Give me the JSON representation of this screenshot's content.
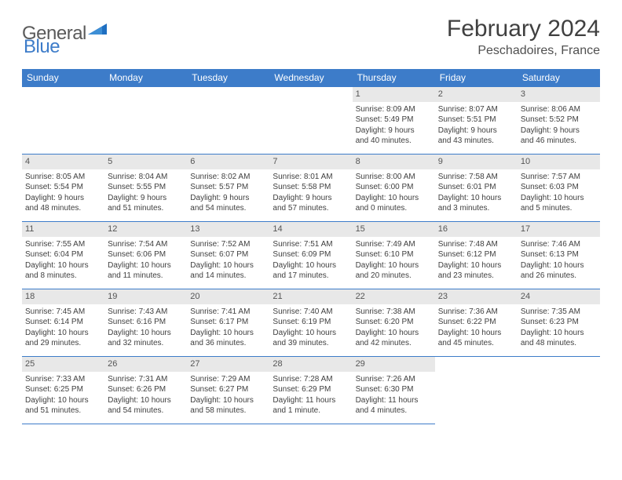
{
  "logo": {
    "part1": "General",
    "part2": "Blue"
  },
  "title": "February 2024",
  "location": "Peschadoires, France",
  "colors": {
    "header_bg": "#3d7cc9",
    "header_text": "#ffffff",
    "daynum_bg": "#e8e8e8",
    "border": "#3d7cc9",
    "text": "#404040",
    "logo_gray": "#5a5a5a",
    "logo_blue": "#3d7cc9",
    "page_bg": "#ffffff"
  },
  "day_headers": [
    "Sunday",
    "Monday",
    "Tuesday",
    "Wednesday",
    "Thursday",
    "Friday",
    "Saturday"
  ],
  "weeks": [
    [
      null,
      null,
      null,
      null,
      {
        "n": "1",
        "sr": "Sunrise: 8:09 AM",
        "ss": "Sunset: 5:49 PM",
        "d1": "Daylight: 9 hours",
        "d2": "and 40 minutes."
      },
      {
        "n": "2",
        "sr": "Sunrise: 8:07 AM",
        "ss": "Sunset: 5:51 PM",
        "d1": "Daylight: 9 hours",
        "d2": "and 43 minutes."
      },
      {
        "n": "3",
        "sr": "Sunrise: 8:06 AM",
        "ss": "Sunset: 5:52 PM",
        "d1": "Daylight: 9 hours",
        "d2": "and 46 minutes."
      }
    ],
    [
      {
        "n": "4",
        "sr": "Sunrise: 8:05 AM",
        "ss": "Sunset: 5:54 PM",
        "d1": "Daylight: 9 hours",
        "d2": "and 48 minutes."
      },
      {
        "n": "5",
        "sr": "Sunrise: 8:04 AM",
        "ss": "Sunset: 5:55 PM",
        "d1": "Daylight: 9 hours",
        "d2": "and 51 minutes."
      },
      {
        "n": "6",
        "sr": "Sunrise: 8:02 AM",
        "ss": "Sunset: 5:57 PM",
        "d1": "Daylight: 9 hours",
        "d2": "and 54 minutes."
      },
      {
        "n": "7",
        "sr": "Sunrise: 8:01 AM",
        "ss": "Sunset: 5:58 PM",
        "d1": "Daylight: 9 hours",
        "d2": "and 57 minutes."
      },
      {
        "n": "8",
        "sr": "Sunrise: 8:00 AM",
        "ss": "Sunset: 6:00 PM",
        "d1": "Daylight: 10 hours",
        "d2": "and 0 minutes."
      },
      {
        "n": "9",
        "sr": "Sunrise: 7:58 AM",
        "ss": "Sunset: 6:01 PM",
        "d1": "Daylight: 10 hours",
        "d2": "and 3 minutes."
      },
      {
        "n": "10",
        "sr": "Sunrise: 7:57 AM",
        "ss": "Sunset: 6:03 PM",
        "d1": "Daylight: 10 hours",
        "d2": "and 5 minutes."
      }
    ],
    [
      {
        "n": "11",
        "sr": "Sunrise: 7:55 AM",
        "ss": "Sunset: 6:04 PM",
        "d1": "Daylight: 10 hours",
        "d2": "and 8 minutes."
      },
      {
        "n": "12",
        "sr": "Sunrise: 7:54 AM",
        "ss": "Sunset: 6:06 PM",
        "d1": "Daylight: 10 hours",
        "d2": "and 11 minutes."
      },
      {
        "n": "13",
        "sr": "Sunrise: 7:52 AM",
        "ss": "Sunset: 6:07 PM",
        "d1": "Daylight: 10 hours",
        "d2": "and 14 minutes."
      },
      {
        "n": "14",
        "sr": "Sunrise: 7:51 AM",
        "ss": "Sunset: 6:09 PM",
        "d1": "Daylight: 10 hours",
        "d2": "and 17 minutes."
      },
      {
        "n": "15",
        "sr": "Sunrise: 7:49 AM",
        "ss": "Sunset: 6:10 PM",
        "d1": "Daylight: 10 hours",
        "d2": "and 20 minutes."
      },
      {
        "n": "16",
        "sr": "Sunrise: 7:48 AM",
        "ss": "Sunset: 6:12 PM",
        "d1": "Daylight: 10 hours",
        "d2": "and 23 minutes."
      },
      {
        "n": "17",
        "sr": "Sunrise: 7:46 AM",
        "ss": "Sunset: 6:13 PM",
        "d1": "Daylight: 10 hours",
        "d2": "and 26 minutes."
      }
    ],
    [
      {
        "n": "18",
        "sr": "Sunrise: 7:45 AM",
        "ss": "Sunset: 6:14 PM",
        "d1": "Daylight: 10 hours",
        "d2": "and 29 minutes."
      },
      {
        "n": "19",
        "sr": "Sunrise: 7:43 AM",
        "ss": "Sunset: 6:16 PM",
        "d1": "Daylight: 10 hours",
        "d2": "and 32 minutes."
      },
      {
        "n": "20",
        "sr": "Sunrise: 7:41 AM",
        "ss": "Sunset: 6:17 PM",
        "d1": "Daylight: 10 hours",
        "d2": "and 36 minutes."
      },
      {
        "n": "21",
        "sr": "Sunrise: 7:40 AM",
        "ss": "Sunset: 6:19 PM",
        "d1": "Daylight: 10 hours",
        "d2": "and 39 minutes."
      },
      {
        "n": "22",
        "sr": "Sunrise: 7:38 AM",
        "ss": "Sunset: 6:20 PM",
        "d1": "Daylight: 10 hours",
        "d2": "and 42 minutes."
      },
      {
        "n": "23",
        "sr": "Sunrise: 7:36 AM",
        "ss": "Sunset: 6:22 PM",
        "d1": "Daylight: 10 hours",
        "d2": "and 45 minutes."
      },
      {
        "n": "24",
        "sr": "Sunrise: 7:35 AM",
        "ss": "Sunset: 6:23 PM",
        "d1": "Daylight: 10 hours",
        "d2": "and 48 minutes."
      }
    ],
    [
      {
        "n": "25",
        "sr": "Sunrise: 7:33 AM",
        "ss": "Sunset: 6:25 PM",
        "d1": "Daylight: 10 hours",
        "d2": "and 51 minutes."
      },
      {
        "n": "26",
        "sr": "Sunrise: 7:31 AM",
        "ss": "Sunset: 6:26 PM",
        "d1": "Daylight: 10 hours",
        "d2": "and 54 minutes."
      },
      {
        "n": "27",
        "sr": "Sunrise: 7:29 AM",
        "ss": "Sunset: 6:27 PM",
        "d1": "Daylight: 10 hours",
        "d2": "and 58 minutes."
      },
      {
        "n": "28",
        "sr": "Sunrise: 7:28 AM",
        "ss": "Sunset: 6:29 PM",
        "d1": "Daylight: 11 hours",
        "d2": "and 1 minute."
      },
      {
        "n": "29",
        "sr": "Sunrise: 7:26 AM",
        "ss": "Sunset: 6:30 PM",
        "d1": "Daylight: 11 hours",
        "d2": "and 4 minutes."
      },
      null,
      null
    ]
  ]
}
